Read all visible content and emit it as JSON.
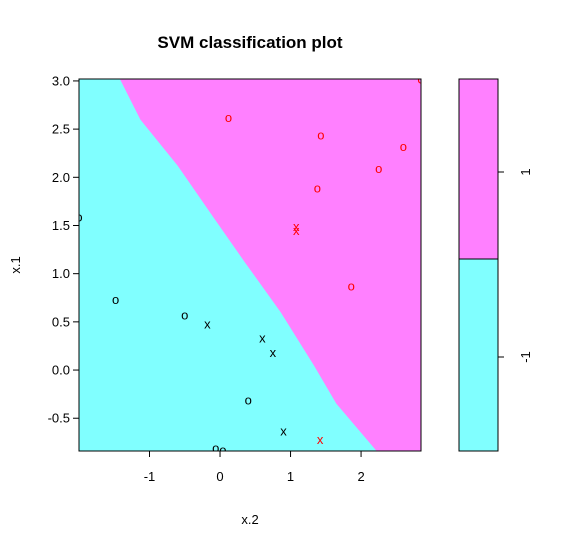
{
  "chart_data": {
    "type": "scatter",
    "title": "SVM classification plot",
    "xlabel": "x.2",
    "ylabel": "x.1",
    "xlim": [
      -2.0,
      2.85
    ],
    "ylim": [
      -0.84,
      3.02
    ],
    "xticks": [
      -1,
      0,
      1,
      2
    ],
    "yticks": [
      -0.5,
      0.0,
      0.5,
      1.0,
      1.5,
      2.0,
      2.5,
      3.0
    ],
    "ytick_labels": [
      "-0.5",
      "0.0",
      "0.5",
      "1.0",
      "1.5",
      "2.0",
      "2.5",
      "3.0"
    ],
    "region_colors": {
      "-1": "#80ffff",
      "1": "#ff80ff"
    },
    "decision_boundary": [
      [
        -1.42,
        3.02
      ],
      [
        -1.13,
        2.6
      ],
      [
        -0.6,
        2.12
      ],
      [
        -0.08,
        1.57
      ],
      [
        0.35,
        1.12
      ],
      [
        0.86,
        0.6
      ],
      [
        1.33,
        0.05
      ],
      [
        1.65,
        -0.35
      ],
      [
        2.22,
        -0.84
      ]
    ],
    "colorbar": {
      "levels": [
        "-1",
        "1"
      ],
      "split_fraction": 0.5
    },
    "points": [
      {
        "x": -2.0,
        "y": 1.59,
        "symbol": "o",
        "color": "#000000"
      },
      {
        "x": -1.48,
        "y": 0.73,
        "symbol": "o",
        "color": "#000000"
      },
      {
        "x": -0.5,
        "y": 0.57,
        "symbol": "o",
        "color": "#000000"
      },
      {
        "x": -0.18,
        "y": 0.48,
        "symbol": "x",
        "color": "#000000"
      },
      {
        "x": 0.6,
        "y": 0.33,
        "symbol": "x",
        "color": "#000000"
      },
      {
        "x": 0.75,
        "y": 0.18,
        "symbol": "x",
        "color": "#000000"
      },
      {
        "x": 0.4,
        "y": -0.31,
        "symbol": "o",
        "color": "#000000"
      },
      {
        "x": 0.9,
        "y": -0.63,
        "symbol": "x",
        "color": "#000000"
      },
      {
        "x": -0.06,
        "y": -0.81,
        "symbol": "o",
        "color": "#000000"
      },
      {
        "x": 0.04,
        "y": -0.83,
        "symbol": "o",
        "color": "#000000"
      },
      {
        "x": 0.12,
        "y": 2.62,
        "symbol": "o",
        "color": "#ff0000"
      },
      {
        "x": 1.43,
        "y": 2.44,
        "symbol": "o",
        "color": "#ff0000"
      },
      {
        "x": 2.6,
        "y": 2.32,
        "symbol": "o",
        "color": "#ff0000"
      },
      {
        "x": 2.25,
        "y": 2.09,
        "symbol": "o",
        "color": "#ff0000"
      },
      {
        "x": 1.38,
        "y": 1.89,
        "symbol": "o",
        "color": "#ff0000"
      },
      {
        "x": 1.08,
        "y": 1.49,
        "symbol": "x",
        "color": "#ff0000"
      },
      {
        "x": 1.08,
        "y": 1.45,
        "symbol": "x",
        "color": "#ff0000"
      },
      {
        "x": 1.86,
        "y": 0.87,
        "symbol": "o",
        "color": "#ff0000"
      },
      {
        "x": 1.42,
        "y": -0.72,
        "symbol": "x",
        "color": "#ff0000"
      },
      {
        "x": 2.85,
        "y": 3.02,
        "symbol": "o",
        "color": "#ff0000"
      }
    ]
  }
}
